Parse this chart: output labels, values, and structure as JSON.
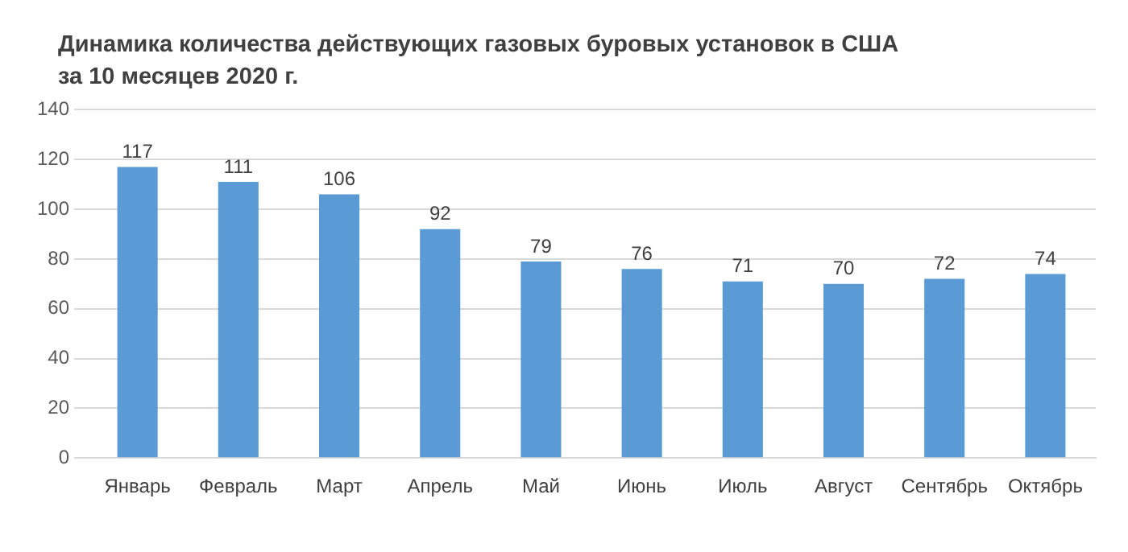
{
  "chart_data": {
    "type": "bar",
    "title": "Динамика количества действующих газовых буровых установок в США\nза 10 месяцев 2020 г.",
    "categories": [
      "Январь",
      "Февраль",
      "Март",
      "Апрель",
      "Май",
      "Июнь",
      "Июль",
      "Август",
      "Сентябрь",
      "Октябрь"
    ],
    "values": [
      117,
      111,
      106,
      92,
      79,
      76,
      71,
      70,
      72,
      74
    ],
    "color": "#5b9bd5",
    "ylim": [
      0,
      140
    ],
    "yticks": [
      0,
      20,
      40,
      60,
      80,
      100,
      120,
      140
    ],
    "grid": "y",
    "data_labels": true,
    "legend": false
  }
}
